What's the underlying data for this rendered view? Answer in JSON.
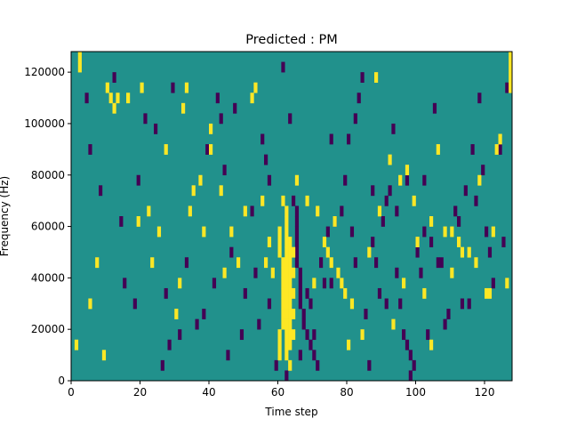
{
  "chart_data": {
    "type": "heatmap",
    "title": "Predicted : PM",
    "xlabel": "Time step",
    "ylabel": "Frequency (Hz)",
    "xlim": [
      0,
      128
    ],
    "ylim": [
      0,
      128000
    ],
    "x_ticks": [
      0,
      20,
      40,
      60,
      80,
      100,
      120
    ],
    "y_ticks": [
      0,
      20000,
      40000,
      60000,
      80000,
      100000,
      120000
    ],
    "x_tick_labels": [
      "0",
      "20",
      "40",
      "60",
      "80",
      "100",
      "120"
    ],
    "y_tick_labels": [
      "0",
      "20000",
      "40000",
      "60000",
      "80000",
      "100000",
      "120000"
    ],
    "grid": false,
    "colormap": [
      "#440154",
      "#21918c",
      "#fde725"
    ],
    "background_value": 0,
    "cell_height_hz": 4000,
    "positive_cells": [
      [
        2,
        124000
      ],
      [
        2,
        120000
      ],
      [
        1,
        12000
      ],
      [
        9,
        8000
      ],
      [
        10,
        112000
      ],
      [
        11,
        108000
      ],
      [
        12,
        104000
      ],
      [
        13,
        108000
      ],
      [
        20,
        112000
      ],
      [
        23,
        44000
      ],
      [
        27,
        88000
      ],
      [
        32,
        104000
      ],
      [
        33,
        112000
      ],
      [
        40,
        96000
      ],
      [
        40,
        88000
      ],
      [
        35,
        72000
      ],
      [
        37,
        76000
      ],
      [
        44,
        40000
      ],
      [
        46,
        56000
      ],
      [
        52,
        108000
      ],
      [
        53,
        112000
      ],
      [
        57,
        52000
      ],
      [
        56,
        44000
      ],
      [
        60,
        56000
      ],
      [
        60,
        52000
      ],
      [
        60,
        48000
      ],
      [
        61,
        44000
      ],
      [
        61,
        40000
      ],
      [
        61,
        36000
      ],
      [
        61,
        32000
      ],
      [
        61,
        28000
      ],
      [
        61,
        24000
      ],
      [
        61,
        20000
      ],
      [
        60,
        16000
      ],
      [
        60,
        12000
      ],
      [
        60,
        8000
      ],
      [
        62,
        60000
      ],
      [
        62,
        56000
      ],
      [
        62,
        52000
      ],
      [
        62,
        48000
      ],
      [
        62,
        44000
      ],
      [
        62,
        40000
      ],
      [
        62,
        36000
      ],
      [
        62,
        32000
      ],
      [
        62,
        28000
      ],
      [
        62,
        24000
      ],
      [
        62,
        20000
      ],
      [
        62,
        16000
      ],
      [
        62,
        12000
      ],
      [
        62,
        8000
      ],
      [
        63,
        52000
      ],
      [
        63,
        48000
      ],
      [
        63,
        44000
      ],
      [
        63,
        40000
      ],
      [
        63,
        36000
      ],
      [
        63,
        32000
      ],
      [
        63,
        28000
      ],
      [
        63,
        24000
      ],
      [
        63,
        20000
      ],
      [
        63,
        16000
      ],
      [
        63,
        12000
      ],
      [
        64,
        48000
      ],
      [
        64,
        40000
      ],
      [
        64,
        32000
      ],
      [
        64,
        24000
      ],
      [
        64,
        16000
      ],
      [
        63,
        4000
      ],
      [
        62,
        64000
      ],
      [
        61,
        68000
      ],
      [
        71,
        64000
      ],
      [
        73,
        52000
      ],
      [
        74,
        48000
      ],
      [
        75,
        44000
      ],
      [
        77,
        40000
      ],
      [
        78,
        36000
      ],
      [
        79,
        32000
      ],
      [
        81,
        28000
      ],
      [
        88,
        116000
      ],
      [
        92,
        84000
      ],
      [
        95,
        76000
      ],
      [
        97,
        80000
      ],
      [
        100,
        52000
      ],
      [
        104,
        60000
      ],
      [
        104,
        12000
      ],
      [
        108,
        56000
      ],
      [
        110,
        56000
      ],
      [
        113,
        48000
      ],
      [
        115,
        48000
      ],
      [
        117,
        44000
      ],
      [
        120,
        32000
      ],
      [
        121,
        32000
      ],
      [
        123,
        88000
      ],
      [
        124,
        92000
      ],
      [
        126,
        36000
      ],
      [
        127,
        120000
      ],
      [
        127,
        124000
      ],
      [
        127,
        116000
      ],
      [
        127,
        112000
      ],
      [
        5,
        28000
      ],
      [
        7,
        44000
      ],
      [
        16,
        108000
      ],
      [
        19,
        60000
      ],
      [
        22,
        64000
      ],
      [
        25,
        56000
      ],
      [
        30,
        24000
      ],
      [
        31,
        36000
      ],
      [
        34,
        64000
      ],
      [
        38,
        56000
      ],
      [
        43,
        72000
      ],
      [
        48,
        44000
      ],
      [
        50,
        64000
      ],
      [
        55,
        68000
      ],
      [
        58,
        40000
      ],
      [
        65,
        76000
      ],
      [
        68,
        68000
      ],
      [
        70,
        36000
      ],
      [
        76,
        60000
      ],
      [
        80,
        12000
      ],
      [
        84,
        16000
      ],
      [
        86,
        48000
      ],
      [
        89,
        64000
      ],
      [
        93,
        20000
      ],
      [
        96,
        36000
      ],
      [
        99,
        68000
      ],
      [
        102,
        32000
      ],
      [
        106,
        88000
      ],
      [
        110,
        40000
      ],
      [
        112,
        52000
      ],
      [
        118,
        76000
      ],
      [
        122,
        56000
      ]
    ],
    "negative_cells": [
      [
        5,
        88000
      ],
      [
        12,
        116000
      ],
      [
        21,
        100000
      ],
      [
        24,
        96000
      ],
      [
        29,
        112000
      ],
      [
        31,
        16000
      ],
      [
        38,
        24000
      ],
      [
        42,
        108000
      ],
      [
        43,
        100000
      ],
      [
        47,
        104000
      ],
      [
        50,
        32000
      ],
      [
        55,
        92000
      ],
      [
        56,
        84000
      ],
      [
        57,
        76000
      ],
      [
        64,
        68000
      ],
      [
        65,
        64000
      ],
      [
        65,
        60000
      ],
      [
        65,
        56000
      ],
      [
        65,
        52000
      ],
      [
        65,
        48000
      ],
      [
        65,
        44000
      ],
      [
        66,
        40000
      ],
      [
        66,
        36000
      ],
      [
        66,
        32000
      ],
      [
        66,
        28000
      ],
      [
        67,
        24000
      ],
      [
        67,
        20000
      ],
      [
        68,
        16000
      ],
      [
        69,
        12000
      ],
      [
        70,
        8000
      ],
      [
        71,
        4000
      ],
      [
        68,
        32000
      ],
      [
        69,
        28000
      ],
      [
        72,
        44000
      ],
      [
        73,
        36000
      ],
      [
        74,
        56000
      ],
      [
        76,
        60000
      ],
      [
        78,
        64000
      ],
      [
        79,
        76000
      ],
      [
        80,
        92000
      ],
      [
        82,
        100000
      ],
      [
        83,
        108000
      ],
      [
        84,
        116000
      ],
      [
        86,
        4000
      ],
      [
        87,
        52000
      ],
      [
        88,
        44000
      ],
      [
        90,
        60000
      ],
      [
        91,
        68000
      ],
      [
        92,
        72000
      ],
      [
        94,
        40000
      ],
      [
        95,
        28000
      ],
      [
        96,
        16000
      ],
      [
        97,
        12000
      ],
      [
        98,
        8000
      ],
      [
        99,
        4000
      ],
      [
        100,
        48000
      ],
      [
        102,
        56000
      ],
      [
        104,
        52000
      ],
      [
        106,
        44000
      ],
      [
        107,
        44000
      ],
      [
        108,
        20000
      ],
      [
        109,
        24000
      ],
      [
        111,
        64000
      ],
      [
        112,
        60000
      ],
      [
        114,
        72000
      ],
      [
        116,
        88000
      ],
      [
        118,
        108000
      ],
      [
        120,
        56000
      ],
      [
        122,
        36000
      ],
      [
        124,
        88000
      ],
      [
        126,
        112000
      ],
      [
        15,
        36000
      ],
      [
        19,
        76000
      ],
      [
        26,
        4000
      ],
      [
        28,
        12000
      ],
      [
        33,
        44000
      ],
      [
        36,
        20000
      ],
      [
        39,
        88000
      ],
      [
        41,
        36000
      ],
      [
        45,
        8000
      ],
      [
        52,
        64000
      ],
      [
        54,
        20000
      ],
      [
        59,
        4000
      ],
      [
        61,
        120000
      ],
      [
        63,
        100000
      ],
      [
        70,
        16000
      ],
      [
        75,
        92000
      ],
      [
        81,
        56000
      ],
      [
        85,
        24000
      ],
      [
        89,
        32000
      ],
      [
        93,
        96000
      ],
      [
        97,
        76000
      ],
      [
        101,
        40000
      ],
      [
        103,
        16000
      ],
      [
        105,
        104000
      ],
      [
        113,
        28000
      ],
      [
        117,
        68000
      ],
      [
        121,
        48000
      ],
      [
        125,
        52000
      ],
      [
        4,
        108000
      ],
      [
        8,
        72000
      ],
      [
        14,
        60000
      ],
      [
        18,
        28000
      ],
      [
        27,
        32000
      ],
      [
        44,
        80000
      ],
      [
        46,
        48000
      ],
      [
        49,
        16000
      ],
      [
        53,
        40000
      ],
      [
        57,
        28000
      ],
      [
        62,
        0
      ],
      [
        66,
        8000
      ],
      [
        75,
        36000
      ],
      [
        82,
        44000
      ],
      [
        87,
        72000
      ],
      [
        91,
        28000
      ],
      [
        94,
        64000
      ],
      [
        98,
        0
      ],
      [
        102,
        76000
      ],
      [
        115,
        28000
      ],
      [
        119,
        80000
      ]
    ]
  }
}
